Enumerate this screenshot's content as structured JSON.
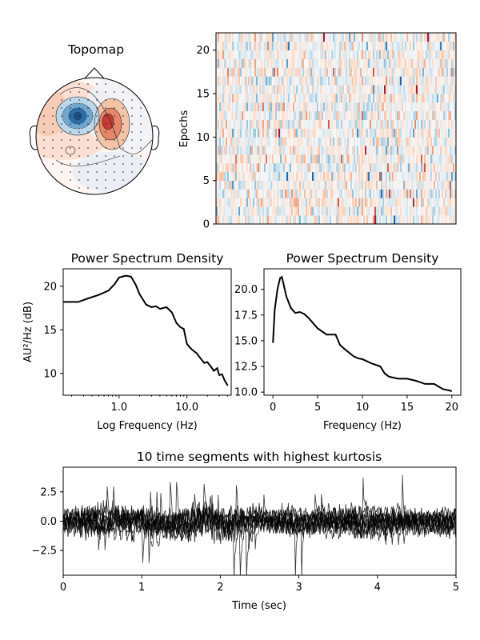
{
  "chart_data": [
    {
      "type": "heatmap",
      "panel": "topomap",
      "title": "Topomap",
      "colormap": "RdBu_r",
      "features": [
        {
          "kind": "negative-peak",
          "region": "left-frontal"
        },
        {
          "kind": "positive-peak",
          "region": "right-frontal"
        }
      ]
    },
    {
      "type": "heatmap",
      "panel": "epochs-image",
      "title": "",
      "xlabel": "",
      "ylabel": "Epochs",
      "ylim": [
        0,
        22
      ],
      "yticks": [
        "0",
        "5",
        "10",
        "15",
        "20"
      ],
      "n_epochs": 22,
      "colormap": "RdBu_r"
    },
    {
      "type": "line",
      "panel": "psd-log",
      "title": "Power Spectrum Density",
      "xlabel": "Log Frequency (Hz)",
      "ylabel": "AU²/Hz (dB)",
      "xscale": "log",
      "xlim": [
        0.15,
        45
      ],
      "ylim": [
        7.5,
        22
      ],
      "xticks": [
        "1.0",
        "10.0"
      ],
      "yticks": [
        "10",
        "15",
        "20"
      ],
      "x": [
        0.15,
        0.25,
        0.35,
        0.5,
        0.7,
        0.85,
        1.0,
        1.25,
        1.5,
        1.75,
        2.0,
        2.5,
        3.0,
        3.5,
        4.0,
        5.0,
        6.0,
        7.0,
        8.0,
        9.0,
        10,
        11,
        12,
        14,
        16,
        18,
        20,
        22,
        25,
        28,
        30,
        33,
        36,
        40
      ],
      "y": [
        18.2,
        18.2,
        18.6,
        19.0,
        19.5,
        20.2,
        21.0,
        21.2,
        21.1,
        20.2,
        19.1,
        17.9,
        17.6,
        17.7,
        17.4,
        17.6,
        17.0,
        15.8,
        15.3,
        15.1,
        13.4,
        13.0,
        12.7,
        12.3,
        11.7,
        11.2,
        11.3,
        10.9,
        10.3,
        10.6,
        9.8,
        9.9,
        9.2,
        8.6
      ]
    },
    {
      "type": "line",
      "panel": "psd-linear",
      "title": "Power Spectrum Density",
      "xlabel": "Frequency (Hz)",
      "ylabel": "",
      "xlim": [
        -1,
        21
      ],
      "ylim": [
        9.7,
        22
      ],
      "xticks": [
        "0",
        "5",
        "10",
        "15",
        "20"
      ],
      "yticks": [
        "10.0",
        "12.5",
        "15.0",
        "17.5",
        "20.0"
      ],
      "x": [
        0,
        0.2,
        0.5,
        0.8,
        1.0,
        1.5,
        2.0,
        2.5,
        3.0,
        3.5,
        4.0,
        5.0,
        6.0,
        7.0,
        7.5,
        8.0,
        9.0,
        9.5,
        10,
        11,
        12,
        12.5,
        13,
        14,
        15,
        16,
        17,
        18,
        19,
        20
      ],
      "y": [
        14.8,
        18.0,
        20.0,
        21.1,
        21.2,
        19.3,
        18.2,
        17.7,
        17.8,
        17.6,
        17.2,
        16.2,
        15.6,
        15.6,
        14.6,
        14.2,
        13.5,
        13.3,
        13.2,
        12.8,
        12.5,
        11.8,
        11.5,
        11.3,
        11.3,
        11.1,
        10.8,
        10.8,
        10.3,
        10.1
      ]
    },
    {
      "type": "line",
      "panel": "time-segments",
      "title": "10 time segments with highest kurtosis",
      "xlabel": "Time (sec)",
      "ylabel": "",
      "xlim": [
        0,
        5
      ],
      "ylim": [
        -4.6,
        4.6
      ],
      "xticks": [
        "0",
        "1",
        "2",
        "3",
        "4",
        "5"
      ],
      "yticks": [
        "−2.5",
        "0.0",
        "2.5"
      ],
      "n_segments": 10
    }
  ]
}
